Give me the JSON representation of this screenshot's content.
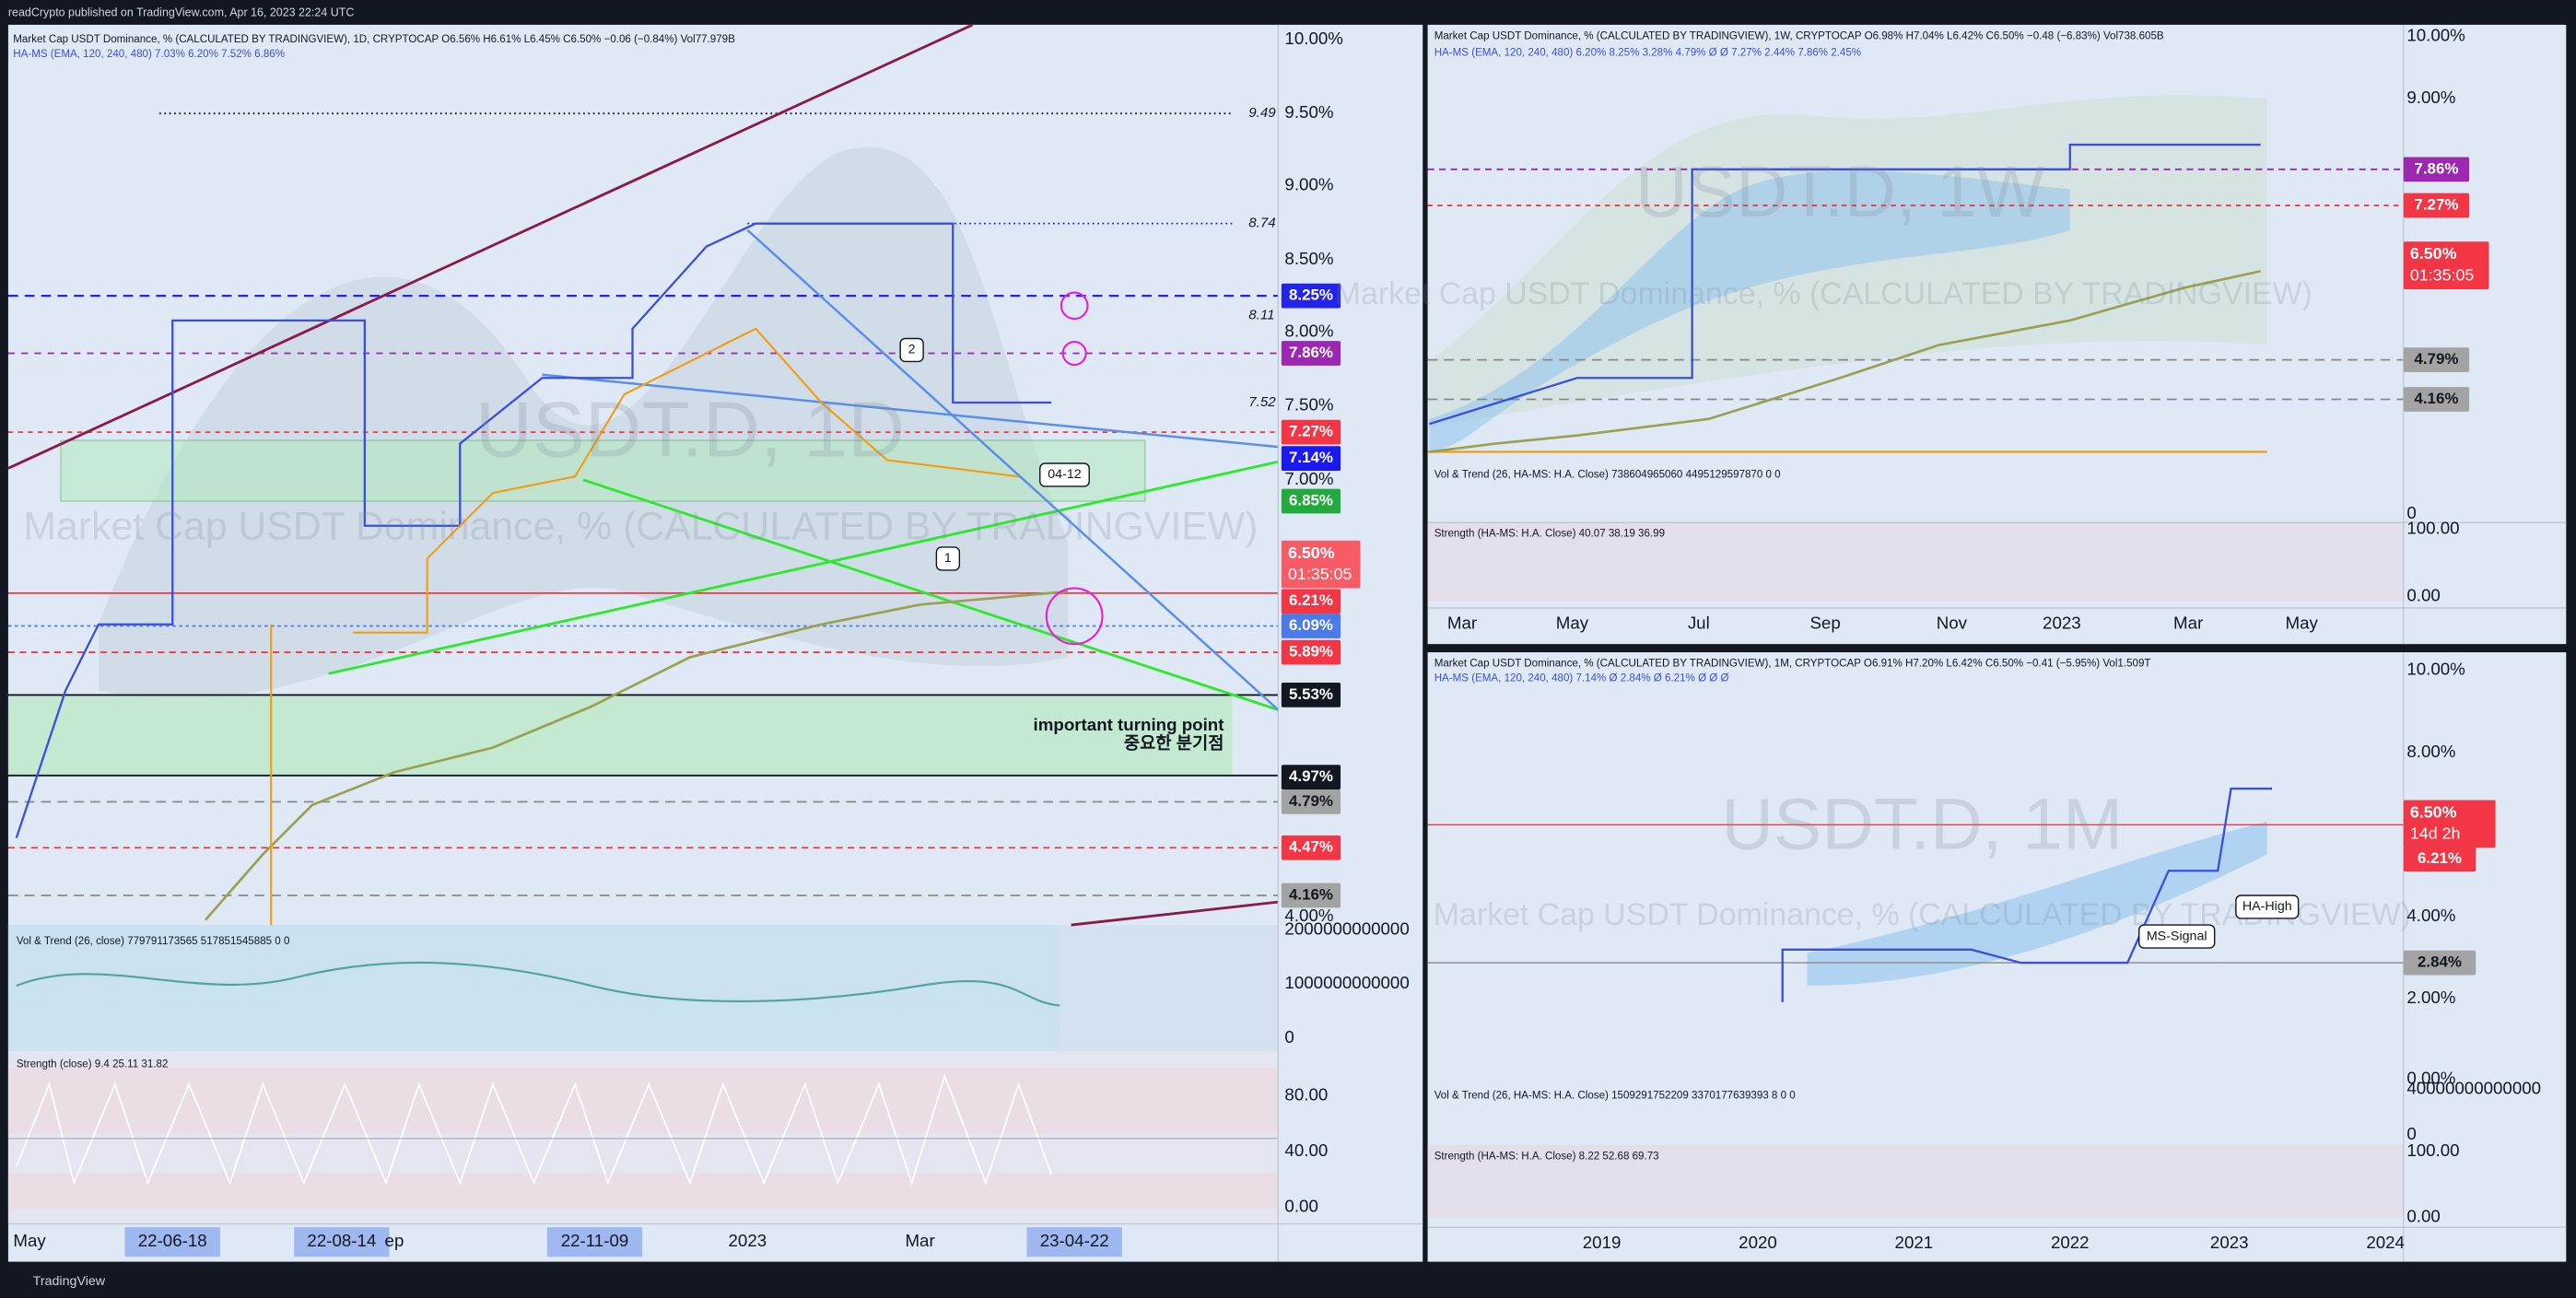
{
  "header": {
    "publisher": "readCrypto published on TradingView.com, Apr 16, 2023 22:24 UTC"
  },
  "footer": {
    "brand": "TradingView"
  },
  "panels": [
    {
      "legend": [
        "Market Cap USDT Dominance, % (CALCULATED BY TRADINGVIEW), 1D, CRYPTOCAP  O6.56%  H6.61%  L6.45%  C6.50%  −0.06 (−0.84%)  Vol77.979B",
        "HA-MS (EMA, 120, 240, 480)  7.03%  6.20%  7.52%  6.86%"
      ],
      "watermark": [
        "USDT.D, 1D",
        "Market Cap USDT Dominance, % (CALCULATED BY TRADINGVIEW)"
      ],
      "price_axis": [
        "10.00%",
        "9.50%",
        "9.00%",
        "8.50%",
        "8.00%",
        "7.50%",
        "7.00%",
        "4.00%"
      ],
      "price_labels": [
        {
          "text": "8.25%",
          "color": "#2424e8"
        },
        {
          "text": "7.86%",
          "color": "#9c27b0"
        },
        {
          "text": "7.27%",
          "color": "#f23645"
        },
        {
          "text": "7.14%",
          "color": "#1a1af0"
        },
        {
          "text": "6.85%",
          "color": "#22ab3c"
        },
        {
          "text": "6.50%",
          "color": "#f75c66"
        },
        {
          "text": "6.21%",
          "color": "#f23645"
        },
        {
          "text": "6.09%",
          "color": "#4a7be8"
        },
        {
          "text": "5.89%",
          "color": "#f23645"
        },
        {
          "text": "5.53%",
          "color": "#131722"
        },
        {
          "text": "4.97%",
          "color": "#131722"
        },
        {
          "text": "4.79%",
          "color": "#a3a3a3"
        },
        {
          "text": "4.47%",
          "color": "#f23645"
        },
        {
          "text": "4.16%",
          "color": "#a3a3a3"
        }
      ],
      "countdown": "01:35:05",
      "level_notes": [
        "9.49",
        "8.74",
        "8.11",
        "7.52"
      ],
      "annotations": [
        "important turning point",
        "중요한 분기점",
        "04-12",
        "2",
        "1"
      ],
      "volume": {
        "legend": "Vol & Trend (26, close)  779791173565  517851545885  0  0",
        "axis": [
          "2000000000000",
          "1000000000000",
          "0"
        ]
      },
      "strength": {
        "legend": "Strength (close)  9.4  25.11  31.82",
        "axis": [
          "80.00",
          "40.00",
          "0.00"
        ]
      },
      "time_axis": [
        "May",
        "22-06-18",
        "22-08-14",
        "ep",
        "22-11-09",
        "2023",
        "Mar",
        "23-04-22"
      ]
    },
    {
      "legend": [
        "Market Cap USDT Dominance, % (CALCULATED BY TRADINGVIEW), 1W, CRYPTOCAP  O6.98%  H7.04%  L6.42%  C6.50%  −0.48 (−6.83%)  Vol738.605B",
        "HA-MS (EMA, 120, 240, 480)  6.20%  8.25%  3.28%  4.79%  Ø  Ø  7.27%  2.44%  7.86%  2.45%"
      ],
      "watermark": [
        "USDT.D, 1W",
        "Market Cap USDT Dominance, % (CALCULATED BY TRADINGVIEW)"
      ],
      "price_axis": [
        "10.00%",
        "9.00%"
      ],
      "price_labels": [
        {
          "text": "7.86%",
          "color": "#9c27b0"
        },
        {
          "text": "7.27%",
          "color": "#f23645"
        },
        {
          "text": "6.50%",
          "color": "#f23645"
        },
        {
          "text": "4.79%",
          "color": "#a3a3a3"
        },
        {
          "text": "4.16%",
          "color": "#a3a3a3"
        }
      ],
      "countdown": "01:35:05",
      "volume": {
        "legend": "Vol & Trend (26, HA-MS: H.A. Close)  738604965060  4495129597870  0  0",
        "axis": [
          "0"
        ]
      },
      "strength": {
        "legend": "Strength (HA-MS: H.A. Close)  40.07  38.19  36.99",
        "axis": [
          "100.00",
          "0.00"
        ]
      },
      "time_axis": [
        "Mar",
        "May",
        "Jul",
        "Sep",
        "Nov",
        "2023",
        "Mar",
        "May"
      ]
    },
    {
      "legend": [
        "Market Cap USDT Dominance, % (CALCULATED BY TRADINGVIEW), 1M, CRYPTOCAP  O6.91%  H7.20%  L6.42%  C6.50%  −0.41 (−5.95%)  Vol1.509T",
        "HA-MS (EMA, 120, 240, 480)  7.14%  Ø  2.84%  Ø  6.21%  Ø  Ø  Ø"
      ],
      "watermark": [
        "USDT.D, 1M",
        "Market Cap USDT Dominance, % (CALCULATED BY TRADINGVIEW)"
      ],
      "price_axis": [
        "10.00%",
        "8.00%",
        "4.00%",
        "2.00%",
        "0.00%"
      ],
      "price_labels": [
        {
          "text": "6.50%",
          "color": "#f23645"
        },
        {
          "text": "6.21%",
          "color": "#f23645"
        },
        {
          "text": "2.84%",
          "color": "#a3a3a3"
        }
      ],
      "countdown": "14d 2h",
      "annotations": [
        "HA-High",
        "MS-Signal"
      ],
      "volume": {
        "legend": "Vol & Trend (26, HA-MS: H.A. Close)  1509291752209  3370177639393 8  0  0",
        "axis": [
          "40000000000000",
          "0"
        ]
      },
      "strength": {
        "legend": "Strength (HA-MS: H.A. Close)  8.22  52.68  69.73",
        "axis": [
          "100.00",
          "0.00"
        ]
      },
      "time_axis": [
        "2019",
        "2020",
        "2021",
        "2022",
        "2023",
        "2024"
      ]
    }
  ]
}
